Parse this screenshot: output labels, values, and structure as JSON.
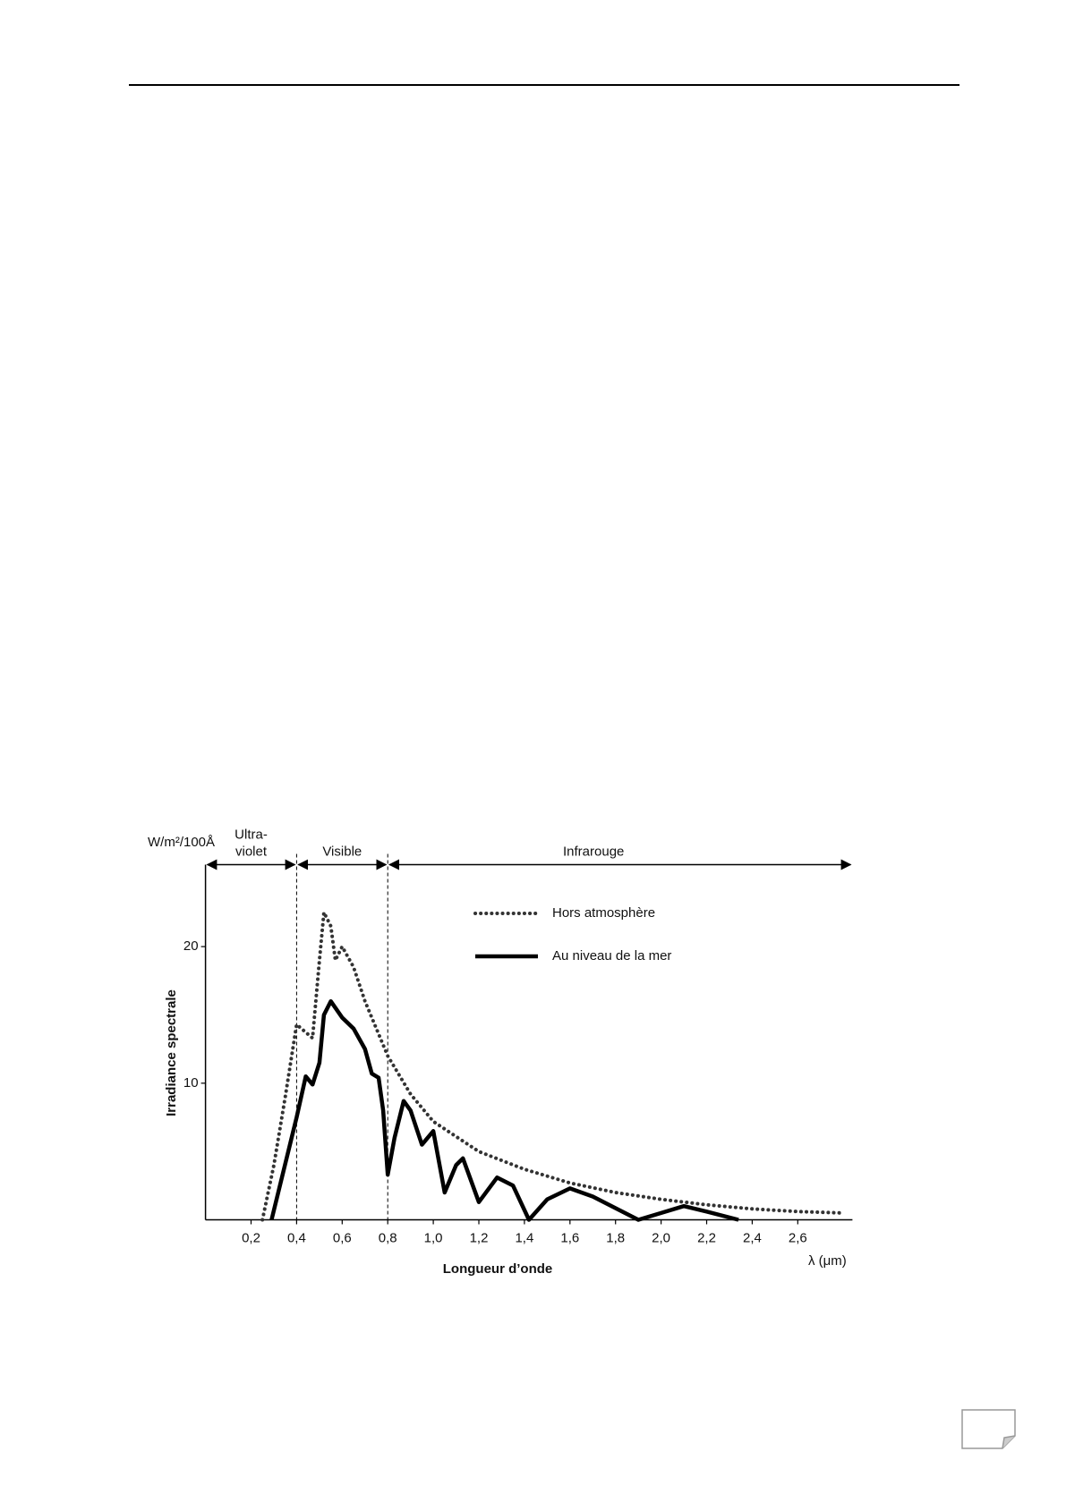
{
  "chart_data": {
    "type": "line",
    "y_unit_label": "W/m²/100Å",
    "ylabel": "Irradiance spectrale",
    "xlabel": "Longueur d’onde",
    "x_unit_label": "λ  (μm)",
    "xlim": [
      0,
      2.84
    ],
    "ylim": [
      0,
      26
    ],
    "xticks": [
      {
        "value": 0.2,
        "label": "0,2"
      },
      {
        "value": 0.4,
        "label": "0,4"
      },
      {
        "value": 0.6,
        "label": "0,6"
      },
      {
        "value": 0.8,
        "label": "0,8"
      },
      {
        "value": 1.0,
        "label": "1,0"
      },
      {
        "value": 1.2,
        "label": "1,2"
      },
      {
        "value": 1.4,
        "label": "1,4"
      },
      {
        "value": 1.6,
        "label": "1,6"
      },
      {
        "value": 1.8,
        "label": "1,8"
      },
      {
        "value": 2.0,
        "label": "2,0"
      },
      {
        "value": 2.2,
        "label": "2,2"
      },
      {
        "value": 2.4,
        "label": "2,4"
      },
      {
        "value": 2.6,
        "label": "2,6"
      }
    ],
    "yticks": [
      10,
      20
    ],
    "legend": "upper right",
    "regions": [
      {
        "label": [
          "Ultra-",
          "violet"
        ],
        "from": 0,
        "to": 0.4
      },
      {
        "label": [
          "Visible"
        ],
        "from": 0.4,
        "to": 0.8
      },
      {
        "label": [
          "Infrarouge"
        ],
        "from": 0.8,
        "to": 2.84
      }
    ],
    "series": [
      {
        "name": "Hors atmosphère",
        "color": "#333333",
        "style": "dotted",
        "x": [
          0.25,
          0.3,
          0.35,
          0.4,
          0.47,
          0.5,
          0.52,
          0.55,
          0.57,
          0.6,
          0.65,
          0.7,
          0.8,
          0.9,
          1.0,
          1.2,
          1.4,
          1.6,
          1.8,
          2.0,
          2.2,
          2.4,
          2.6,
          2.8
        ],
        "values": [
          0,
          4,
          9,
          14.3,
          13.3,
          19,
          22.5,
          21.5,
          19,
          20,
          18.5,
          16,
          12,
          9.2,
          7.2,
          5,
          3.7,
          2.7,
          2,
          1.5,
          1.1,
          0.8,
          0.6,
          0.5
        ]
      },
      {
        "name": "Au niveau de la mer",
        "color": "#000000",
        "style": "solid",
        "x": [
          0.29,
          0.4,
          0.44,
          0.47,
          0.5,
          0.52,
          0.55,
          0.6,
          0.65,
          0.7,
          0.73,
          0.76,
          0.78,
          0.8,
          0.83,
          0.87,
          0.9,
          0.95,
          1.0,
          1.05,
          1.1,
          1.13,
          1.2,
          1.28,
          1.35,
          1.42,
          1.5,
          1.6,
          1.7,
          1.9,
          2.0,
          2.1,
          2.2,
          2.34
        ],
        "values": [
          0,
          7.5,
          10.5,
          9.9,
          11.5,
          15,
          16,
          14.8,
          14,
          12.5,
          10.7,
          10.4,
          8,
          3.3,
          6,
          8.7,
          8,
          5.5,
          6.5,
          2,
          4,
          4.5,
          1.3,
          3.1,
          2.5,
          0,
          1.5,
          2.3,
          1.7,
          0,
          0.5,
          1,
          0.6,
          0
        ]
      }
    ]
  }
}
